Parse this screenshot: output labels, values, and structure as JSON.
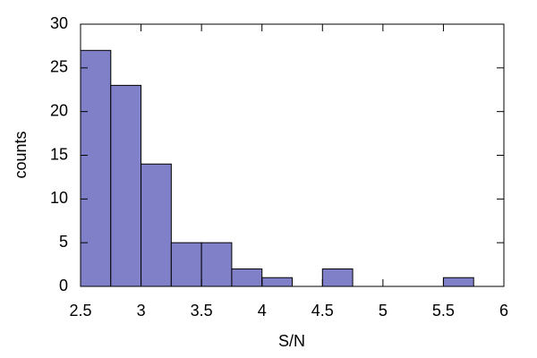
{
  "chart_data": {
    "type": "histogram",
    "x_label": "S/N",
    "y_label": "counts",
    "bins": [
      2.5,
      2.75,
      3,
      3.25,
      3.5,
      3.75,
      4,
      4.25,
      4.5,
      4.75,
      5,
      5.25,
      5.5,
      5.75
    ],
    "values": [
      27,
      23,
      14,
      5,
      5,
      2,
      1,
      0,
      2,
      0,
      0,
      0,
      1
    ],
    "color": "#8080c8",
    "xlim": [
      2.5,
      6
    ],
    "xticks": [
      2.5,
      3,
      3.5,
      4,
      4.5,
      5,
      5.5,
      6
    ],
    "ylim": [
      0,
      30
    ],
    "yticks": [
      0,
      5,
      10,
      15,
      20,
      25,
      30
    ]
  }
}
